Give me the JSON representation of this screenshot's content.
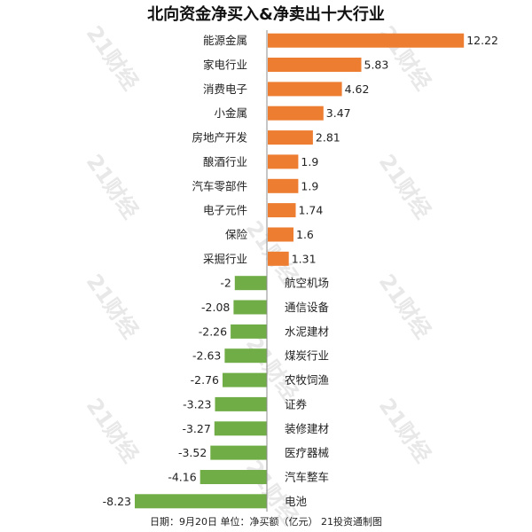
{
  "chart_data": {
    "type": "bar",
    "orientation": "horizontal",
    "title": "北向资金净买入&净卖出十大行业",
    "footer": "日期：9月20日 单位：净买额（亿元） 21投资通制图",
    "watermark": "21财经",
    "colors": {
      "positive": "#ED7D31",
      "negative": "#70AD47"
    },
    "categories": [
      "能源金属",
      "家电行业",
      "消费电子",
      "小金属",
      "房地产开发",
      "酿酒行业",
      "汽车零部件",
      "电子元件",
      "保险",
      "采掘行业",
      "航空机场",
      "通信设备",
      "水泥建材",
      "煤炭行业",
      "农牧饲渔",
      "证券",
      "装修建材",
      "医疗器械",
      "汽车整车",
      "电池"
    ],
    "values": [
      12.22,
      5.83,
      4.62,
      3.47,
      2.81,
      1.9,
      1.9,
      1.74,
      1.6,
      1.31,
      -2,
      -2.08,
      -2.26,
      -2.63,
      -2.76,
      -3.23,
      -3.27,
      -3.52,
      -4.16,
      -8.23
    ],
    "value_labels": [
      "12.22",
      "5.83",
      "4.62",
      "3.47",
      "2.81",
      "1.9",
      "1.9",
      "1.74",
      "1.6",
      "1.31",
      "-2",
      "-2.08",
      "-2.26",
      "-2.63",
      "-2.76",
      "-3.23",
      "-3.27",
      "-3.52",
      "-4.16",
      "-8.23"
    ]
  }
}
